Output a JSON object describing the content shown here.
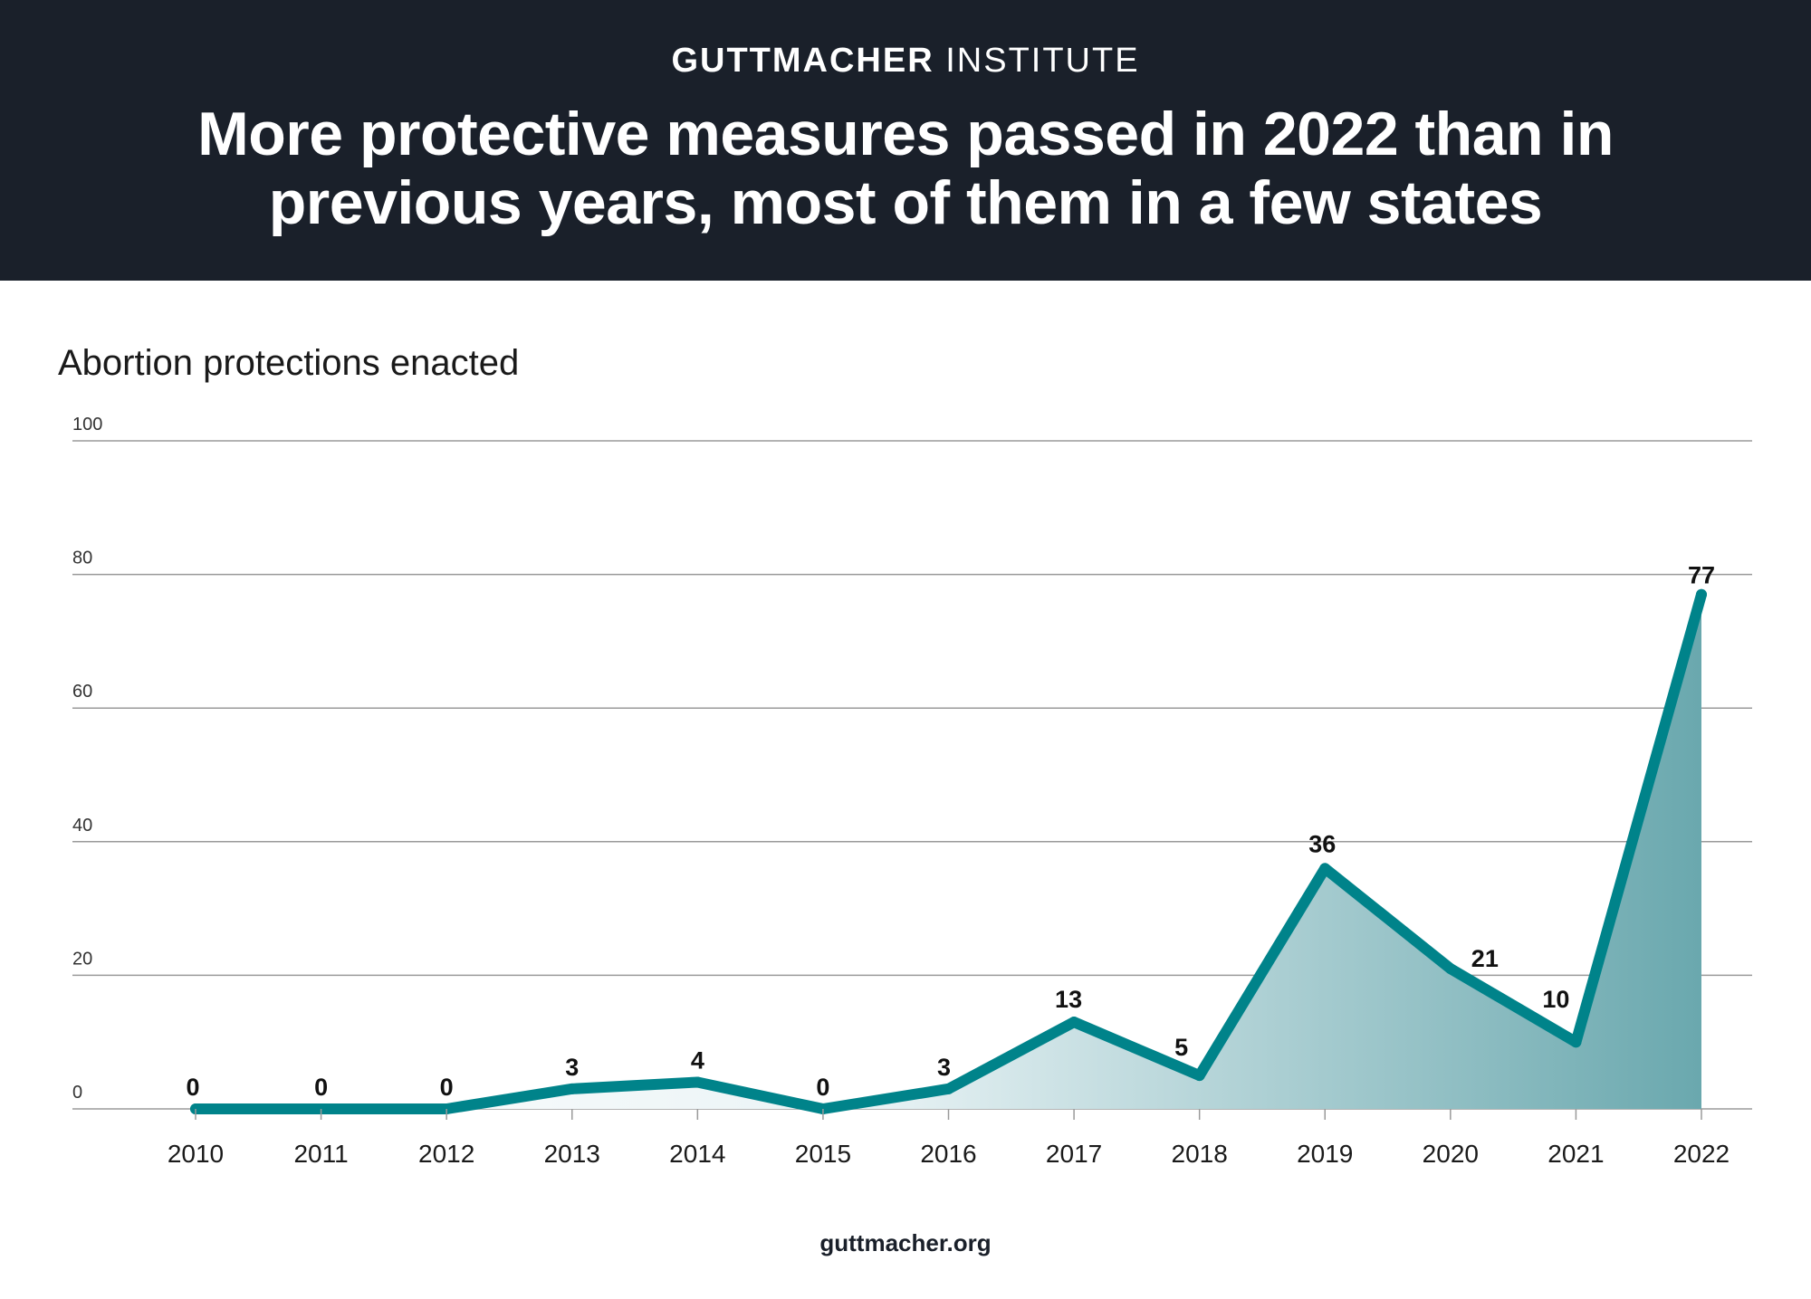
{
  "header": {
    "brand_bold": "GUTTMACHER",
    "brand_light": "INSTITUTE",
    "headline": "More protective measures passed in 2022 than in previous years, most of them in a few states"
  },
  "footer": {
    "url": "guttmacher.org"
  },
  "colors": {
    "header_bg": "#1a202a",
    "line": "#00838a",
    "area_light": "#e9f3f5",
    "area_dark": "#6aa8ae",
    "grid": "#9a9a9a"
  },
  "chart_data": {
    "type": "area",
    "title": "Abortion protections enacted",
    "xlabel": "",
    "ylabel": "",
    "categories": [
      "2010",
      "2011",
      "2012",
      "2013",
      "2014",
      "2015",
      "2016",
      "2017",
      "2018",
      "2019",
      "2020",
      "2021",
      "2022"
    ],
    "values": [
      0,
      0,
      0,
      3,
      4,
      0,
      3,
      13,
      5,
      36,
      21,
      10,
      77
    ],
    "data_labels": [
      "0",
      "0",
      "0",
      "3",
      "4",
      "0",
      "3",
      "13",
      "5",
      "36",
      "21",
      "10",
      "77"
    ],
    "y_ticks": [
      "0",
      "20",
      "40",
      "60",
      "80",
      "100"
    ],
    "ylim": [
      0,
      100
    ],
    "grid": true,
    "legend": "none"
  }
}
